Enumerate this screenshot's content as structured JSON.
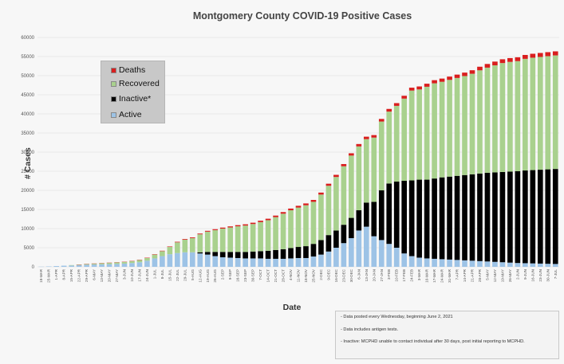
{
  "chart_data": {
    "type": "bar",
    "stacked": true,
    "title": "Montgomery County COVID-19 Positive Cases",
    "xlabel": "Date",
    "ylabel": "# Cases",
    "ylim": [
      0,
      60000
    ],
    "yticks": [
      0,
      5000,
      10000,
      15000,
      20000,
      25000,
      30000,
      35000,
      40000,
      45000,
      50000,
      55000,
      60000
    ],
    "grid": true,
    "legend_position": "top-left",
    "categories": [
      "18-MAR",
      "25-MAR",
      "1-APR",
      "8-APR",
      "15-APR",
      "22-APR",
      "29-APR",
      "6-MAY",
      "13-MAY",
      "20-MAY",
      "27-MAY",
      "3-JUN",
      "10-JUN",
      "17-JUN",
      "24-JUN",
      "1-JUL",
      "8-JUL",
      "15-JUL",
      "22-JUL",
      "29-JUL",
      "5-AUG",
      "12-AUG",
      "19-AUG",
      "26-AUG",
      "2-SEP",
      "9-SEP",
      "16-SEP",
      "23-SEP",
      "30-SEP",
      "7-OCT",
      "14-OCT",
      "21-OCT",
      "28-OCT",
      "4-NOV",
      "11-NOV",
      "18-NOV",
      "25-NOV",
      "2-DEC",
      "9-DEC",
      "16-DEC",
      "23-DEC",
      "30-DEC",
      "6-JAN",
      "13-JAN",
      "20-JAN",
      "27-JAN",
      "3-FEB",
      "10-FEB",
      "17-FEB",
      "24-FEB",
      "3-MAR",
      "10-MAR",
      "17-MAR",
      "24-MAR",
      "31-MAR",
      "7-APR",
      "14-APR",
      "21-APR",
      "28-APR",
      "5-MAY",
      "12-MAY",
      "19-MAY",
      "26-MAY",
      "2-JUN",
      "9-JUN",
      "16-JUN",
      "23-JUN",
      "30-JUN",
      "7-JUL"
    ],
    "series": [
      {
        "name": "Active",
        "color": "#9dc3e6",
        "values": [
          40,
          100,
          200,
          300,
          350,
          450,
          550,
          600,
          650,
          700,
          750,
          850,
          1000,
          1200,
          1600,
          2200,
          2800,
          3300,
          3600,
          3800,
          3800,
          3500,
          3200,
          2800,
          2500,
          2400,
          2300,
          2200,
          2200,
          2200,
          2100,
          2100,
          2100,
          2200,
          2300,
          2300,
          2700,
          3200,
          4000,
          5000,
          6200,
          7500,
          9500,
          10500,
          8000,
          7000,
          6000,
          5000,
          3500,
          2800,
          2400,
          2200,
          2100,
          2000,
          1900,
          1800,
          1700,
          1600,
          1500,
          1400,
          1300,
          1200,
          1100,
          1000,
          950,
          900,
          850,
          800,
          750
        ]
      },
      {
        "name": "Inactive*",
        "color": "#000000",
        "values": [
          0,
          0,
          0,
          0,
          0,
          0,
          0,
          0,
          0,
          0,
          0,
          0,
          0,
          0,
          0,
          0,
          0,
          0,
          0,
          0,
          0,
          300,
          700,
          1100,
          1400,
          1500,
          1600,
          1700,
          1800,
          1900,
          2100,
          2300,
          2500,
          2700,
          2900,
          3100,
          3300,
          3800,
          4300,
          4500,
          4800,
          5300,
          5300,
          6300,
          9000,
          13000,
          15800,
          17300,
          19000,
          19800,
          20400,
          20600,
          21000,
          21400,
          21700,
          22000,
          22300,
          22600,
          22900,
          23200,
          23400,
          23600,
          23800,
          24000,
          24250,
          24400,
          24550,
          24700,
          24850
        ]
      },
      {
        "name": "Recovered",
        "color": "#a9d18e",
        "values": [
          0,
          0,
          0,
          0,
          100,
          150,
          200,
          250,
          300,
          350,
          400,
          450,
          500,
          600,
          700,
          1000,
          1300,
          1900,
          2800,
          3300,
          3700,
          4700,
          5300,
          5700,
          6100,
          6400,
          6700,
          6900,
          7200,
          7600,
          8000,
          8600,
          9300,
          9900,
          10300,
          10700,
          11000,
          11900,
          12900,
          14000,
          15300,
          16300,
          16700,
          16600,
          16800,
          18000,
          18800,
          19800,
          21500,
          23500,
          23600,
          24300,
          24900,
          25000,
          25300,
          25600,
          25900,
          26300,
          27000,
          27500,
          28000,
          28500,
          28700,
          28800,
          29200,
          29400,
          29500,
          29600,
          29700
        ]
      },
      {
        "name": "Deaths",
        "color": "#d91e1e",
        "values": [
          0,
          0,
          0,
          0,
          0,
          5,
          10,
          20,
          30,
          40,
          50,
          60,
          70,
          80,
          90,
          100,
          110,
          120,
          150,
          170,
          190,
          200,
          220,
          240,
          260,
          280,
          300,
          320,
          340,
          360,
          380,
          400,
          420,
          440,
          460,
          480,
          500,
          520,
          540,
          560,
          580,
          600,
          620,
          640,
          660,
          680,
          700,
          720,
          740,
          760,
          780,
          800,
          820,
          840,
          860,
          880,
          900,
          920,
          940,
          960,
          980,
          990,
          1000,
          1010,
          1020,
          1030,
          1040,
          1050,
          1060
        ]
      }
    ],
    "legend_order": [
      "Deaths",
      "Recovered",
      "Inactive*",
      "Active"
    ]
  },
  "notes": [
    "- Data posted every Wednesday, beginning June 2, 2021",
    "- Data includes antigen tests.",
    "- Inactive: MCPHD unable to contact individual after 30 days, post initial reporting to MCPHD."
  ]
}
